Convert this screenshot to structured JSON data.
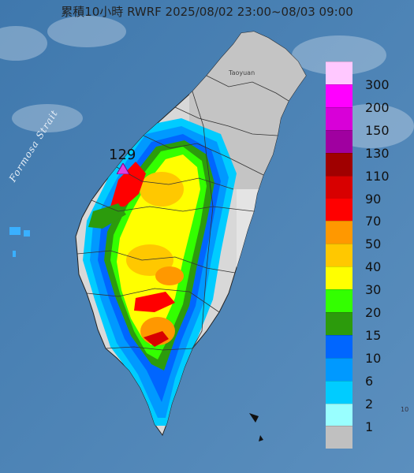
{
  "header": {
    "title": "累積10小時 RWRF 2025/08/02 23:00~08/03 09:00"
  },
  "map_labels": {
    "strait": "Formosa Strait",
    "city": "Taoyuan",
    "edge_number": "10"
  },
  "station": {
    "value": "129",
    "marker_color": "#e040e0"
  },
  "colors": {
    "sea": "#4a7fb0",
    "land_dry": "#c8c8c8",
    "land_mountain": "#e6e6e6"
  },
  "legend": {
    "bins": [
      {
        "label": "300",
        "color": "#ffc8ff"
      },
      {
        "label": "200",
        "color": "#ff00ff"
      },
      {
        "label": "150",
        "color": "#d800d8"
      },
      {
        "label": "130",
        "color": "#a000a0"
      },
      {
        "label": "110",
        "color": "#a00000"
      },
      {
        "label": "90",
        "color": "#d80000"
      },
      {
        "label": "70",
        "color": "#ff0000"
      },
      {
        "label": "50",
        "color": "#ff9800"
      },
      {
        "label": "40",
        "color": "#ffc800"
      },
      {
        "label": "30",
        "color": "#ffff00"
      },
      {
        "label": "20",
        "color": "#33ff00"
      },
      {
        "label": "15",
        "color": "#2c9b0c"
      },
      {
        "label": "10",
        "color": "#0066ff"
      },
      {
        "label": "6",
        "color": "#0099ff"
      },
      {
        "label": "2",
        "color": "#00ccff"
      },
      {
        "label": "1",
        "color": "#99ffff"
      },
      {
        "label": "",
        "color": "#c0c0c0"
      }
    ]
  }
}
